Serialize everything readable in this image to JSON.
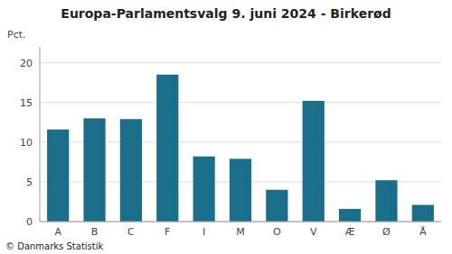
{
  "chart_data": {
    "type": "bar",
    "title": "Europa-Parlamentsvalg 9. juni 2024 - Birkerød",
    "categories": [
      "A",
      "B",
      "C",
      "F",
      "I",
      "M",
      "O",
      "V",
      "Æ",
      "Ø",
      "Å"
    ],
    "values": [
      11.6,
      13.0,
      12.9,
      18.5,
      8.2,
      7.9,
      4.0,
      15.2,
      1.6,
      5.2,
      2.1
    ],
    "color": "#1a6e8a",
    "ylabel": "Pct.",
    "footer": "© Danmarks Statistik",
    "ylim": [
      0,
      22
    ],
    "yticks": [
      0,
      5,
      10,
      15,
      20
    ],
    "grid": true
  }
}
